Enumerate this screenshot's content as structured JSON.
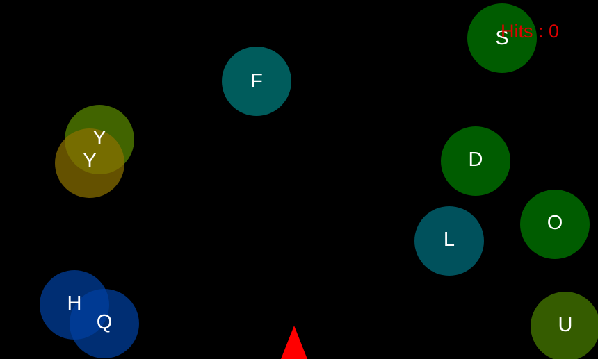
{
  "colors": {
    "background": "#000000",
    "hits_text": "#e00000",
    "shooter": "#ff0000",
    "letter": "#ffffff"
  },
  "hud": {
    "hits_label": "Hits : 0"
  },
  "bubbles": [
    {
      "letter": "S",
      "color": "#008000"
    },
    {
      "letter": "F",
      "color": "#008080"
    },
    {
      "letter": "Y",
      "color": "#5a8a00"
    },
    {
      "letter": "Y",
      "color": "#8a7000"
    },
    {
      "letter": "D",
      "color": "#008000"
    },
    {
      "letter": "L",
      "color": "#007080"
    },
    {
      "letter": "O",
      "color": "#008000"
    },
    {
      "letter": "H",
      "color": "#0040a0"
    },
    {
      "letter": "Q",
      "color": "#0040a0"
    },
    {
      "letter": "U",
      "color": "#4a8000"
    }
  ],
  "shooter": {
    "icon": "triangle-shooter-icon"
  }
}
